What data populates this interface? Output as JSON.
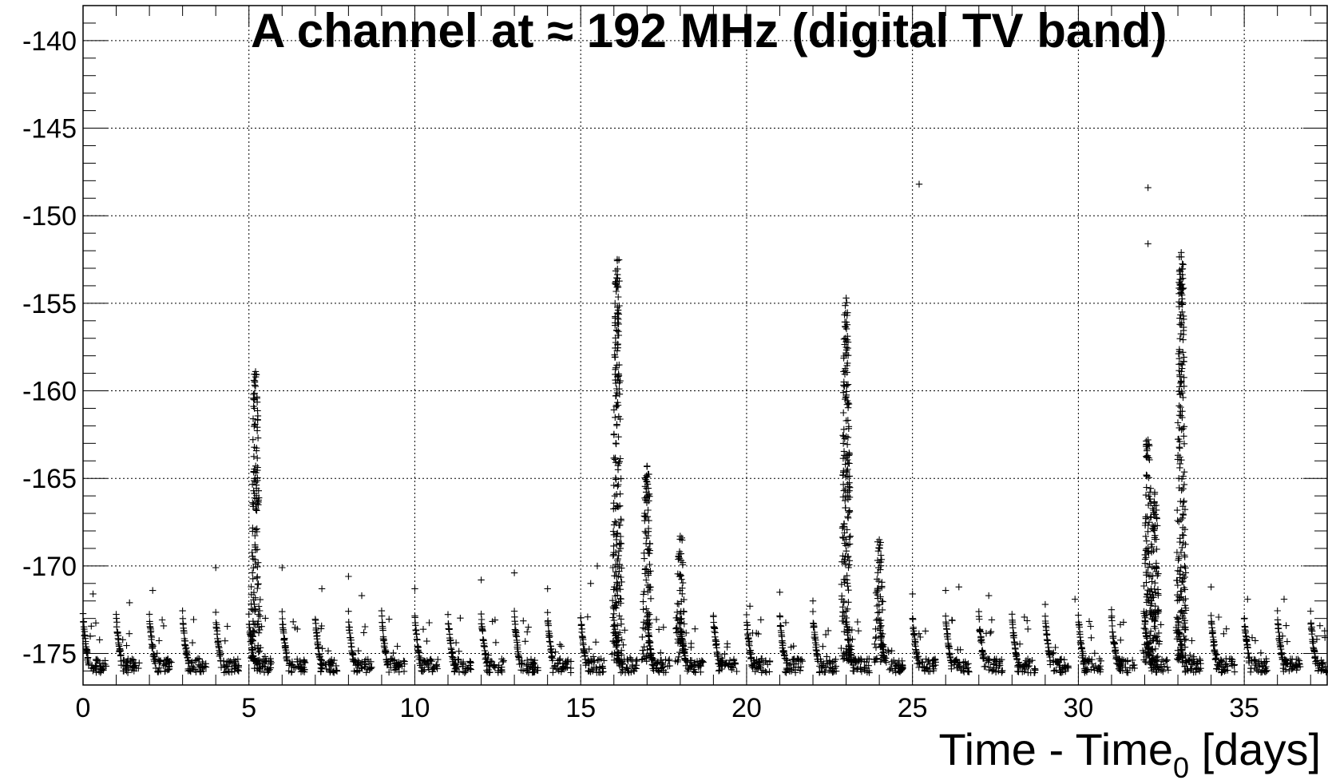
{
  "chart_data": {
    "type": "scatter",
    "title": "A channel at ≈ 192 MHz (digital TV band)",
    "xlabel_main": "Time - Time",
    "xlabel_sub": "0",
    "xlabel_end": " [days]",
    "ylabel": "",
    "xlim": [
      0,
      37.5
    ],
    "ylim": [
      -176.8,
      -138
    ],
    "x_major_ticks": [
      0,
      5,
      10,
      15,
      20,
      25,
      30,
      35
    ],
    "x_tick_labels": [
      "0",
      "5",
      "10",
      "15",
      "20",
      "25",
      "30",
      "35"
    ],
    "y_major_ticks": [
      -175,
      -170,
      -165,
      -160,
      -155,
      -150,
      -145,
      -140
    ],
    "y_tick_labels": [
      "-175",
      "-170",
      "-165",
      "-160",
      "-155",
      "-150",
      "-145",
      "-140"
    ],
    "grid": true,
    "marker": "+",
    "baseline_level": -175.5,
    "daily_cycle_start": -172.8,
    "peaks": [
      {
        "day": 5.2,
        "max": -158.9
      },
      {
        "day": 16.1,
        "max": -152.5
      },
      {
        "day": 17.0,
        "max": -164.3
      },
      {
        "day": 18.0,
        "max": -168.3
      },
      {
        "day": 23.0,
        "max": -154.7
      },
      {
        "day": 24.0,
        "max": -168.5
      },
      {
        "day": 32.1,
        "max": -162.8
      },
      {
        "day": 32.3,
        "max": -165.8
      },
      {
        "day": 33.1,
        "max": -152.1
      }
    ],
    "outliers": [
      {
        "x": 25.2,
        "y": -148.2
      },
      {
        "x": 32.1,
        "y": -148.4
      },
      {
        "x": 32.1,
        "y": -151.6
      },
      {
        "x": 0.3,
        "y": -171.6
      },
      {
        "x": 1.4,
        "y": -172.1
      },
      {
        "x": 2.1,
        "y": -171.4
      },
      {
        "x": 4.0,
        "y": -170.1
      },
      {
        "x": 6.0,
        "y": -170.1
      },
      {
        "x": 7.2,
        "y": -171.3
      },
      {
        "x": 8.0,
        "y": -170.6
      },
      {
        "x": 8.4,
        "y": -171.7
      },
      {
        "x": 10.0,
        "y": -171.3
      },
      {
        "x": 12.0,
        "y": -170.8
      },
      {
        "x": 13.0,
        "y": -170.4
      },
      {
        "x": 14.0,
        "y": -171.3
      },
      {
        "x": 15.3,
        "y": -171.0
      },
      {
        "x": 15.5,
        "y": -170.0
      },
      {
        "x": 19.0,
        "y": -172.9
      },
      {
        "x": 20.1,
        "y": -172.3
      },
      {
        "x": 21.0,
        "y": -171.5
      },
      {
        "x": 22.0,
        "y": -172.0
      },
      {
        "x": 25.0,
        "y": -171.6
      },
      {
        "x": 26.0,
        "y": -171.4
      },
      {
        "x": 26.4,
        "y": -171.2
      },
      {
        "x": 27.3,
        "y": -171.7
      },
      {
        "x": 29.0,
        "y": -172.2
      },
      {
        "x": 29.9,
        "y": -171.9
      },
      {
        "x": 31.0,
        "y": -172.5
      },
      {
        "x": 34.0,
        "y": -171.2
      },
      {
        "x": 35.1,
        "y": -171.9
      },
      {
        "x": 36.2,
        "y": -171.9
      }
    ]
  }
}
